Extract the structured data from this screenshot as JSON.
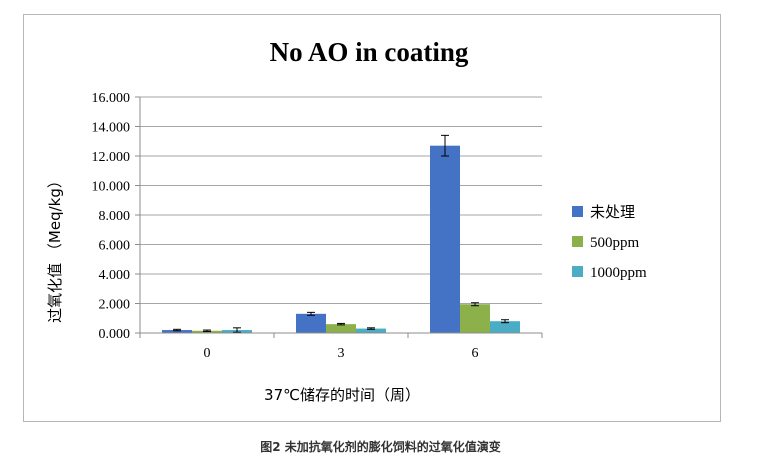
{
  "caption": "图2 未加抗氧化剂的膨化饲料的过氧化值演变",
  "colors": {
    "series": [
      "#4472c4",
      "#8cb04a",
      "#4bacc6"
    ],
    "grid": "#a6a6a6",
    "axis": "#8c8c8c",
    "error_bar": "#000000"
  },
  "chart_data": {
    "type": "bar",
    "title": "No AO in coating",
    "xlabel": "37℃储存的时间（周）",
    "ylabel": "过氧化值 （Meq/kg）",
    "categories": [
      "0",
      "3",
      "6"
    ],
    "ylim": [
      0,
      16
    ],
    "yticks": [
      "0.000",
      "2.000",
      "4.000",
      "6.000",
      "8.000",
      "10.000",
      "12.000",
      "14.000",
      "16.000"
    ],
    "grid": true,
    "legend_position": "right",
    "series": [
      {
        "name": "未处理",
        "values": [
          0.2,
          1.3,
          12.7
        ],
        "errors": [
          0.05,
          0.1,
          0.7
        ]
      },
      {
        "name": "500ppm",
        "values": [
          0.15,
          0.6,
          1.95
        ],
        "errors": [
          0.05,
          0.05,
          0.1
        ]
      },
      {
        "name": "1000ppm",
        "values": [
          0.2,
          0.3,
          0.8
        ],
        "errors": [
          0.15,
          0.05,
          0.1
        ]
      }
    ]
  }
}
